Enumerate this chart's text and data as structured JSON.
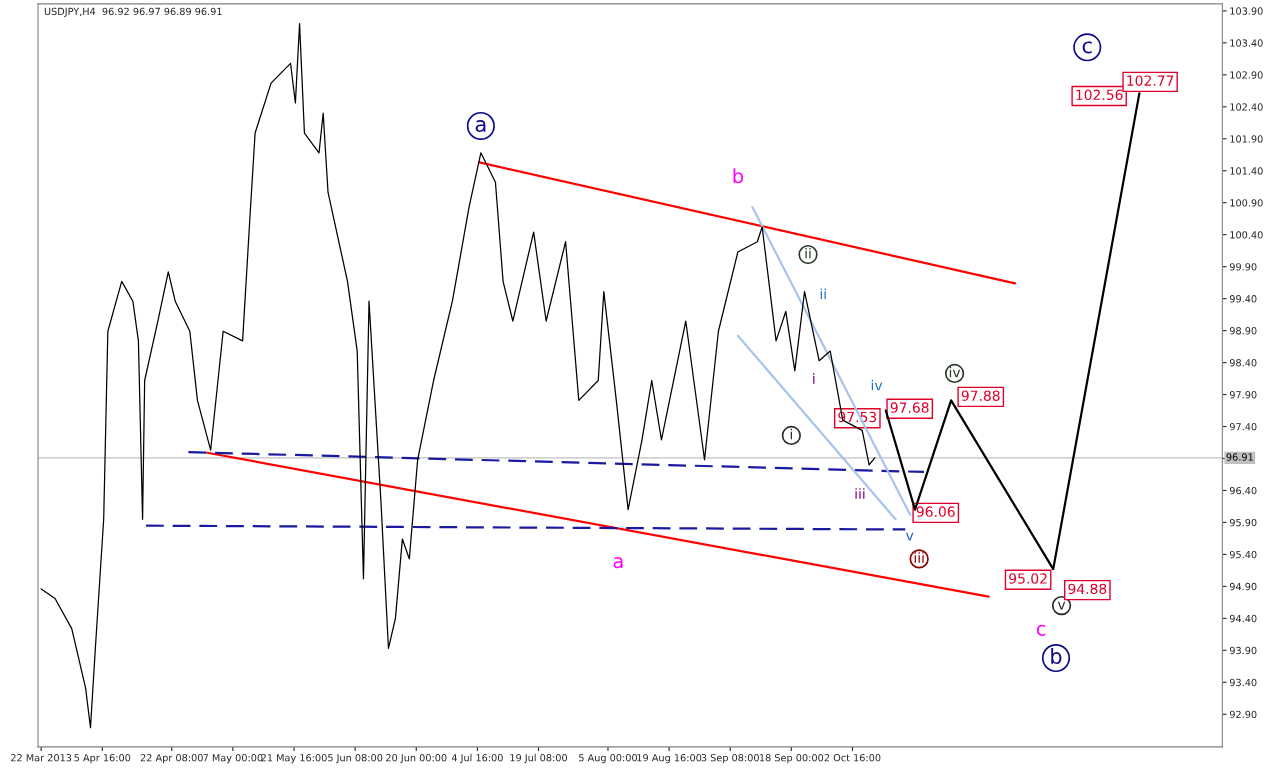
{
  "chart_data": {
    "type": "line",
    "title": "USDJPY,H4  96.92 96.97 96.89 96.91",
    "xlim": [
      "2013-03-21T06:00",
      "2013-12-30T10:00"
    ],
    "ylim": [
      92.39,
      104.01
    ],
    "xticks": [
      {
        "value": "2013-03-22T00:00",
        "label": "22 Mar 2013"
      },
      {
        "value": "2013-04-05T16:00",
        "label": "5 Apr 16:00"
      },
      {
        "value": "2013-04-22T08:00",
        "label": "22 Apr 08:00"
      },
      {
        "value": "2013-05-07T00:00",
        "label": "7 May 00:00"
      },
      {
        "value": "2013-05-21T16:00",
        "label": "21 May 16:00"
      },
      {
        "value": "2013-06-05T08:00",
        "label": "5 Jun 08:00"
      },
      {
        "value": "2013-06-20T00:00",
        "label": "20 Jun 00:00"
      },
      {
        "value": "2013-07-04T16:00",
        "label": "4 Jul 16:00"
      },
      {
        "value": "2013-07-19T08:00",
        "label": "19 Jul 08:00"
      },
      {
        "value": "2013-08-05T00:00",
        "label": "5 Aug 00:00"
      },
      {
        "value": "2013-08-19T16:00",
        "label": "19 Aug 16:00"
      },
      {
        "value": "2013-09-03T08:00",
        "label": "3 Sep 08:00"
      },
      {
        "value": "2013-09-18T00:00",
        "label": "18 Sep 00:00"
      },
      {
        "value": "2013-10-02T16:00",
        "label": "2 Oct 16:00"
      }
    ],
    "yticks": [
      {
        "value": 92.9,
        "label": "92.90"
      },
      {
        "value": 93.4,
        "label": "93.40"
      },
      {
        "value": 93.9,
        "label": "93.90"
      },
      {
        "value": 94.4,
        "label": "94.40"
      },
      {
        "value": 94.9,
        "label": "94.90"
      },
      {
        "value": 95.4,
        "label": "95.40"
      },
      {
        "value": 95.9,
        "label": "95.90"
      },
      {
        "value": 96.4,
        "label": "96.40"
      },
      {
        "value": 96.9,
        "label": null
      },
      {
        "value": 97.4,
        "label": "97.40"
      },
      {
        "value": 97.9,
        "label": "97.90"
      },
      {
        "value": 98.4,
        "label": "98.40"
      },
      {
        "value": 98.9,
        "label": "98.90"
      },
      {
        "value": 99.4,
        "label": "99.40"
      },
      {
        "value": 99.9,
        "label": "99.90"
      },
      {
        "value": 100.4,
        "label": "100.40"
      },
      {
        "value": 100.9,
        "label": "100.90"
      },
      {
        "value": 101.4,
        "label": "101.40"
      },
      {
        "value": 101.9,
        "label": "101.90"
      },
      {
        "value": 102.4,
        "label": "102.40"
      },
      {
        "value": 102.9,
        "label": "102.90"
      },
      {
        "value": 103.4,
        "label": "103.40"
      },
      {
        "value": 103.9,
        "label": "103.90"
      }
    ],
    "grid": false,
    "legend": false,
    "series": [
      {
        "color": "#000000",
        "line_style": "solid",
        "x": [
          "2013-03-22T00:00",
          "2013-03-25T08:00",
          "2013-03-29T08:00",
          "2013-04-01T16:00",
          "2013-04-02T20:00",
          "2013-04-04T00:00",
          "2013-04-06T00:00",
          "2013-04-07T00:00",
          "2013-04-10T08:00",
          "2013-04-13T00:00",
          "2013-04-14T08:00",
          "2013-04-15T08:00",
          "2013-04-15T20:00",
          "2013-04-19T00:00",
          "2013-04-21T12:00",
          "2013-04-23T04:00",
          "2013-04-26T16:00",
          "2013-04-28T12:00",
          "2013-05-01T16:00",
          "2013-05-04T16:00",
          "2013-05-09T08:00",
          "2013-05-11T04:00",
          "2013-05-12T08:00",
          "2013-05-16T04:00",
          "2013-05-20T20:00",
          "2013-05-22T00:00",
          "2013-05-23T00:00",
          "2013-05-24T04:00",
          "2013-05-27T16:00",
          "2013-05-28T16:00",
          "2013-05-29T20:00",
          "2013-06-03T12:00",
          "2013-06-05T20:00",
          "2013-06-07T08:00",
          "2013-06-08T16:00",
          "2013-06-11T12:00",
          "2013-06-13T08:00",
          "2013-06-15T00:00",
          "2013-06-16T16:00",
          "2013-06-18T08:00",
          "2013-06-20T08:00",
          "2013-06-24T04:00",
          "2013-06-28T16:00",
          "2013-07-02T16:00",
          "2013-07-05T12:00",
          "2013-07-09T00:00",
          "2013-07-10T20:00",
          "2013-07-13T04:00",
          "2013-07-18T04:00",
          "2013-07-21T04:00",
          "2013-07-25T20:00",
          "2013-07-29T00:00",
          "2013-08-02T16:00",
          "2013-08-04T00:00",
          "2013-08-07T00:00",
          "2013-08-09T20:00",
          "2013-08-13T04:00",
          "2013-08-15T12:00",
          "2013-08-17T20:00",
          "2013-08-23T16:00",
          "2013-08-28T04:00",
          "2013-08-31T12:00",
          "2013-09-05T04:00",
          "2013-09-09T20:00",
          "2013-09-11T00:00",
          "2013-09-14T08:00",
          "2013-09-16T16:00",
          "2013-09-18T20:00",
          "2013-09-21T04:00",
          "2013-09-24T16:00",
          "2013-09-27T08:00",
          "2013-09-30T08:00",
          "2013-10-05T00:00",
          "2013-10-06T16:00",
          "2013-10-08T00:00"
        ],
        "values": [
          94.86,
          94.71,
          94.24,
          93.31,
          92.69,
          93.93,
          95.95,
          98.89,
          99.67,
          99.36,
          98.74,
          95.95,
          98.12,
          99.05,
          99.82,
          99.36,
          98.89,
          97.81,
          97.03,
          98.89,
          98.74,
          100.75,
          101.99,
          102.77,
          103.08,
          102.46,
          103.7,
          101.99,
          101.68,
          102.3,
          101.06,
          99.67,
          98.58,
          95.02,
          99.36,
          96.26,
          93.93,
          94.4,
          95.64,
          95.33,
          96.88,
          98.12,
          99.36,
          100.83,
          101.68,
          101.22,
          99.67,
          99.05,
          100.44,
          99.05,
          100.29,
          97.81,
          98.12,
          99.51,
          97.81,
          96.1,
          97.19,
          98.12,
          97.19,
          99.05,
          96.88,
          98.89,
          100.13,
          100.29,
          100.52,
          98.74,
          99.2,
          98.27,
          99.51,
          98.43,
          98.58,
          97.5,
          97.34,
          96.8,
          96.91
        ]
      },
      {
        "color": "#ff0000",
        "line_style": "solid",
        "x": [
          "2013-07-05T04:00",
          "2013-11-10T16:00"
        ],
        "values": [
          101.53,
          99.64
        ]
      },
      {
        "color": "#ff0000",
        "line_style": "solid",
        "x": [
          "2013-04-30T20:00",
          "2013-11-04T08:00"
        ],
        "values": [
          96.99,
          94.74
        ]
      },
      {
        "color": "#1a1aa0",
        "line_style": "dashed",
        "x": [
          "2013-04-26T08:00",
          "2013-10-19T20:00"
        ],
        "values": [
          97.0,
          96.69
        ]
      },
      {
        "color": "#1a1aa0",
        "line_style": "dashed",
        "x": [
          "2013-04-16T04:00",
          "2013-10-15T08:00"
        ],
        "values": [
          95.85,
          95.79
        ]
      },
      {
        "color": "#a8c4ea",
        "line_style": "solid",
        "x": [
          "2013-09-08T16:00",
          "2013-10-16T12:00"
        ],
        "values": [
          100.83,
          96.02
        ]
      },
      {
        "color": "#a8c4ea",
        "line_style": "solid",
        "x": [
          "2013-09-05T04:00",
          "2013-10-13T00:00"
        ],
        "values": [
          98.82,
          95.95
        ]
      },
      {
        "color": "#000000",
        "line_style": "solid",
        "x": [
          "2013-10-10T16:00",
          "2013-10-17T16:00",
          "2013-10-26T08:00",
          "2013-11-19T20:00",
          "2013-12-10T12:00"
        ],
        "values": [
          97.65,
          96.1,
          97.81,
          95.17,
          102.61
        ]
      }
    ],
    "ref_lines": [
      {
        "axis": "y",
        "value": 96.91,
        "label": "96.91",
        "color": "#c0c0c0"
      }
    ],
    "annotations": [
      {
        "text": "a",
        "x": "2013-07-05T12:00",
        "y": 102.1
      },
      "b",
      "a",
      "c",
      {
        "text": "c",
        "x": "2013-11-28T00:00",
        "y": 103.33
      },
      {
        "text": "b",
        "x": "2013-11-20T12:00",
        "y": 93.78
      },
      {
        "text": "ii",
        "x": "2013-09-22T00:00",
        "y": 100.09
      },
      "ii",
      "i",
      "iv",
      {
        "text": "iv",
        "x": "2013-10-27T04:00",
        "y": 98.23
      },
      {
        "text": "i",
        "x": "2013-09-18T00:00",
        "y": 97.26
      },
      "iii",
      "v",
      {
        "text": "iii",
        "x": "2013-10-18T16:00",
        "y": 95.33
      },
      {
        "text": "v",
        "x": "2013-11-21T20:00",
        "y": 94.6
      },
      {
        "text": "97.53",
        "x": "2013-10-03T20:00",
        "y": 97.53
      },
      "97.68",
      "97.88",
      "96.06",
      "95.02",
      "94.88",
      "102.56",
      "102.77"
    ]
  }
}
